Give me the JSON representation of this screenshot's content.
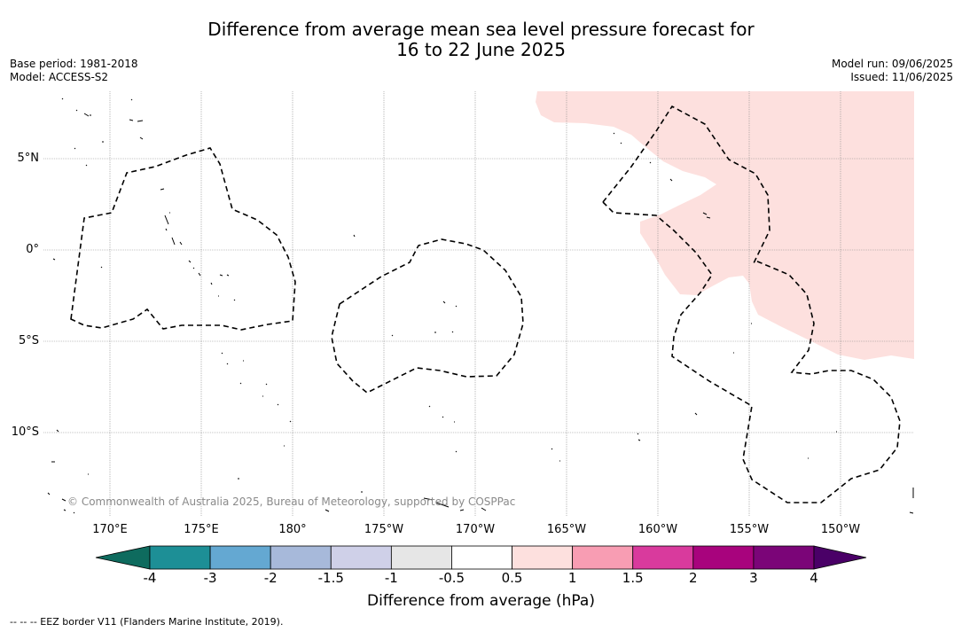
{
  "title": {
    "line1": "Difference from average mean sea level pressure forecast for",
    "line2": "16 to 22 June 2025"
  },
  "meta_left": {
    "base_period": "Base period: 1981-2018",
    "model": "Model: ACCESS-S2"
  },
  "meta_right": {
    "model_run": "Model run: 09/06/2025",
    "issued": "Issued: 11/06/2025"
  },
  "map": {
    "longitude_labels": [
      "170°E",
      "175°E",
      "180°",
      "175°W",
      "170°W",
      "165°W",
      "160°W",
      "155°W",
      "150°W"
    ],
    "latitude_labels": [
      "5°N",
      "0°",
      "5°S",
      "10°S"
    ],
    "copyright": "© Commonwealth of Australia 2025, Bureau of Meteorology, supported by COSPPac",
    "anomaly_region_category": "0.5 to 1"
  },
  "colorbar": {
    "label": "Difference from average (hPa)",
    "ticks": [
      "-4",
      "-3",
      "-2",
      "-1.5",
      "-1",
      "-0.5",
      "0.5",
      "1",
      "1.5",
      "2",
      "3",
      "4"
    ],
    "colors": [
      "#0e6b5e",
      "#1d8f96",
      "#64a8d2",
      "#a7b9da",
      "#cfd0e8",
      "#e6e6e6",
      "#ffffff",
      "#fde0de",
      "#f89db3",
      "#d93a9d",
      "#a8037d",
      "#7b0578",
      "#4a0067"
    ]
  },
  "footnote": "--  --  -- EEZ border V11 (Flanders Marine Institute, 2019)."
}
